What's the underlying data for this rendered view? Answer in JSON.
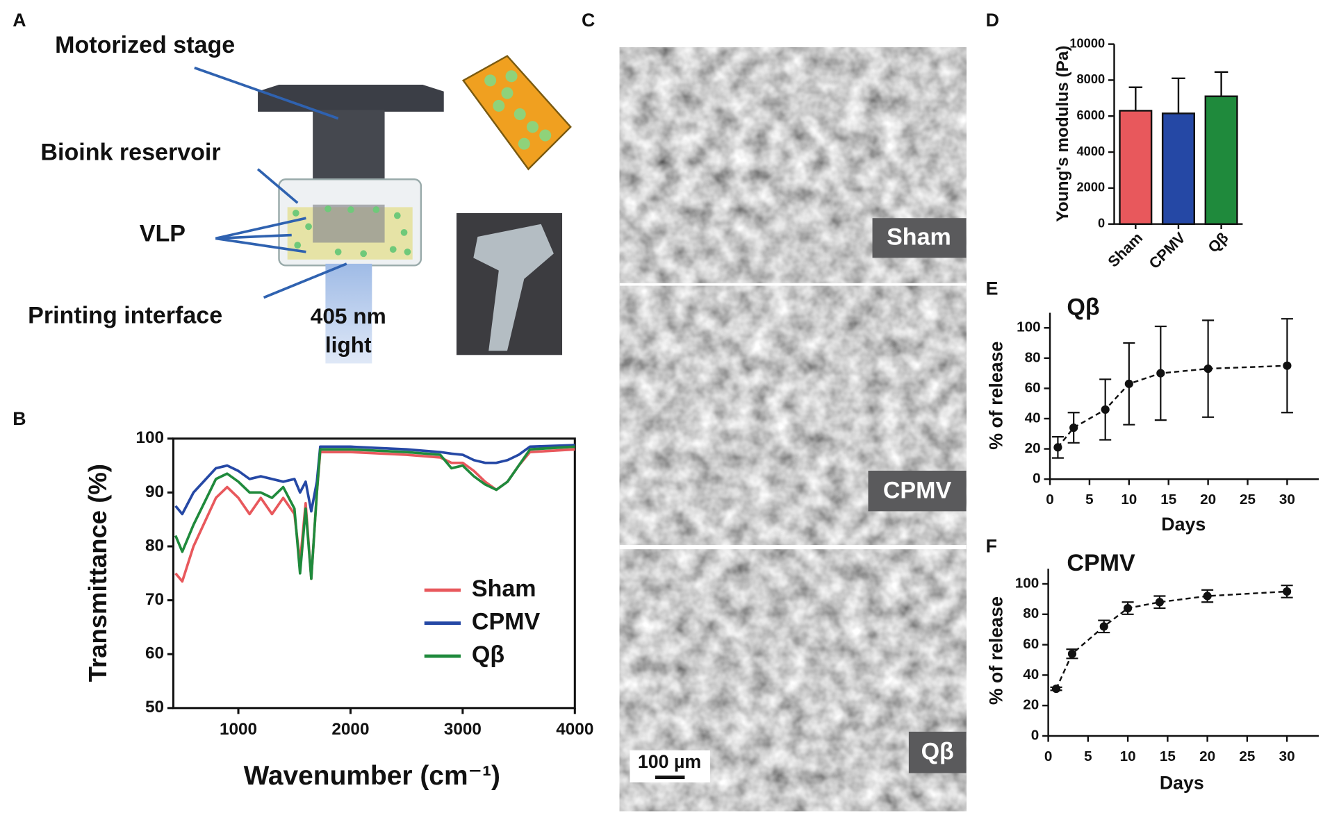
{
  "panel_labels": [
    "A",
    "B",
    "C",
    "D",
    "E",
    "F"
  ],
  "diagram": {
    "labels": [
      "Motorized stage",
      "Bioink reservoir",
      "VLP",
      "Printing interface"
    ],
    "light_label": [
      "405 nm",
      "light"
    ]
  },
  "micrographs": {
    "labels": [
      "Sham",
      "CPMV",
      "Qβ"
    ],
    "scale_bar": "100 µm"
  },
  "chart_data": [
    {
      "type": "line",
      "xlabel": "Wavenumber (cm⁻¹)",
      "ylabel": "Transmittance (%)",
      "x": [
        440,
        500,
        600,
        800,
        900,
        1000,
        1100,
        1200,
        1300,
        1400,
        1500,
        1550,
        1600,
        1650,
        1700,
        1730,
        2000,
        2500,
        2800,
        2900,
        3000,
        3100,
        3200,
        3300,
        3400,
        3500,
        3600,
        4000
      ],
      "xlim": [
        420,
        4000
      ],
      "xticks": [
        1000,
        2000,
        3000,
        4000
      ],
      "ylim": [
        50,
        100
      ],
      "yticks": [
        50,
        60,
        70,
        80,
        90,
        100
      ],
      "legend": "center right",
      "series": [
        {
          "name": "Sham",
          "color": "#e8585c",
          "values": [
            75,
            73.5,
            80,
            89,
            91,
            89,
            86,
            89,
            86,
            89,
            86,
            77,
            88,
            74,
            90,
            97.5,
            97.5,
            97,
            96.5,
            95.5,
            95.5,
            94,
            92,
            90.5,
            92,
            95,
            97.5,
            98
          ]
        },
        {
          "name": "CPMV",
          "color": "#2548a5",
          "values": [
            87.5,
            86,
            90,
            94.5,
            95,
            94,
            92.5,
            93,
            92.5,
            92,
            92.5,
            90,
            92,
            86.5,
            92,
            98.5,
            98.5,
            98,
            97.5,
            97.2,
            97,
            96,
            95.5,
            95.5,
            96,
            97,
            98.5,
            98.8
          ]
        },
        {
          "name": "Qβ",
          "color": "#1f8a3c",
          "values": [
            82,
            79,
            84,
            92.5,
            93.5,
            92,
            90,
            90,
            89,
            91,
            87,
            75,
            87,
            74,
            90,
            98,
            98,
            97.5,
            97,
            94.5,
            95,
            93,
            91.5,
            90.5,
            92,
            95,
            98,
            98.5
          ]
        }
      ]
    },
    {
      "type": "bar",
      "ylabel": "Young's modulus (Pa)",
      "categories": [
        "Sham",
        "CPMV",
        "Qβ"
      ],
      "values": [
        6300,
        6150,
        7100
      ],
      "errors": [
        1300,
        1950,
        1350
      ],
      "colors": [
        "#e8585c",
        "#2548a5",
        "#1f8a3c"
      ],
      "ylim": [
        0,
        10000
      ],
      "yticks": [
        0,
        2000,
        4000,
        6000,
        8000,
        10000
      ]
    },
    {
      "type": "line",
      "title": "Qβ",
      "xlabel": "Days",
      "ylabel": "% of release",
      "x": [
        1,
        3,
        7,
        10,
        14,
        20,
        30
      ],
      "xlim": [
        0,
        34
      ],
      "xticks": [
        0,
        5,
        10,
        15,
        20,
        25,
        30
      ],
      "ylim": [
        0,
        110
      ],
      "yticks": [
        0,
        20,
        40,
        60,
        80,
        100
      ],
      "linestyle": "dashed",
      "marker": "circle",
      "series": [
        {
          "color": "#111111",
          "values": [
            21,
            34,
            46,
            63,
            70,
            73,
            75
          ],
          "errors": [
            7,
            10,
            20,
            27,
            31,
            32,
            31
          ]
        }
      ]
    },
    {
      "type": "line",
      "title": "CPMV",
      "xlabel": "Days",
      "ylabel": "% of release",
      "x": [
        1,
        3,
        7,
        10,
        14,
        20,
        30
      ],
      "xlim": [
        0,
        34
      ],
      "xticks": [
        0,
        5,
        10,
        15,
        20,
        25,
        30
      ],
      "ylim": [
        0,
        110
      ],
      "yticks": [
        0,
        20,
        40,
        60,
        80,
        100
      ],
      "linestyle": "dashed",
      "marker": "circle",
      "series": [
        {
          "color": "#111111",
          "values": [
            31,
            54,
            72,
            84,
            88,
            92,
            95
          ],
          "errors": [
            1,
            3,
            4,
            4,
            4,
            4,
            4
          ]
        }
      ]
    }
  ]
}
